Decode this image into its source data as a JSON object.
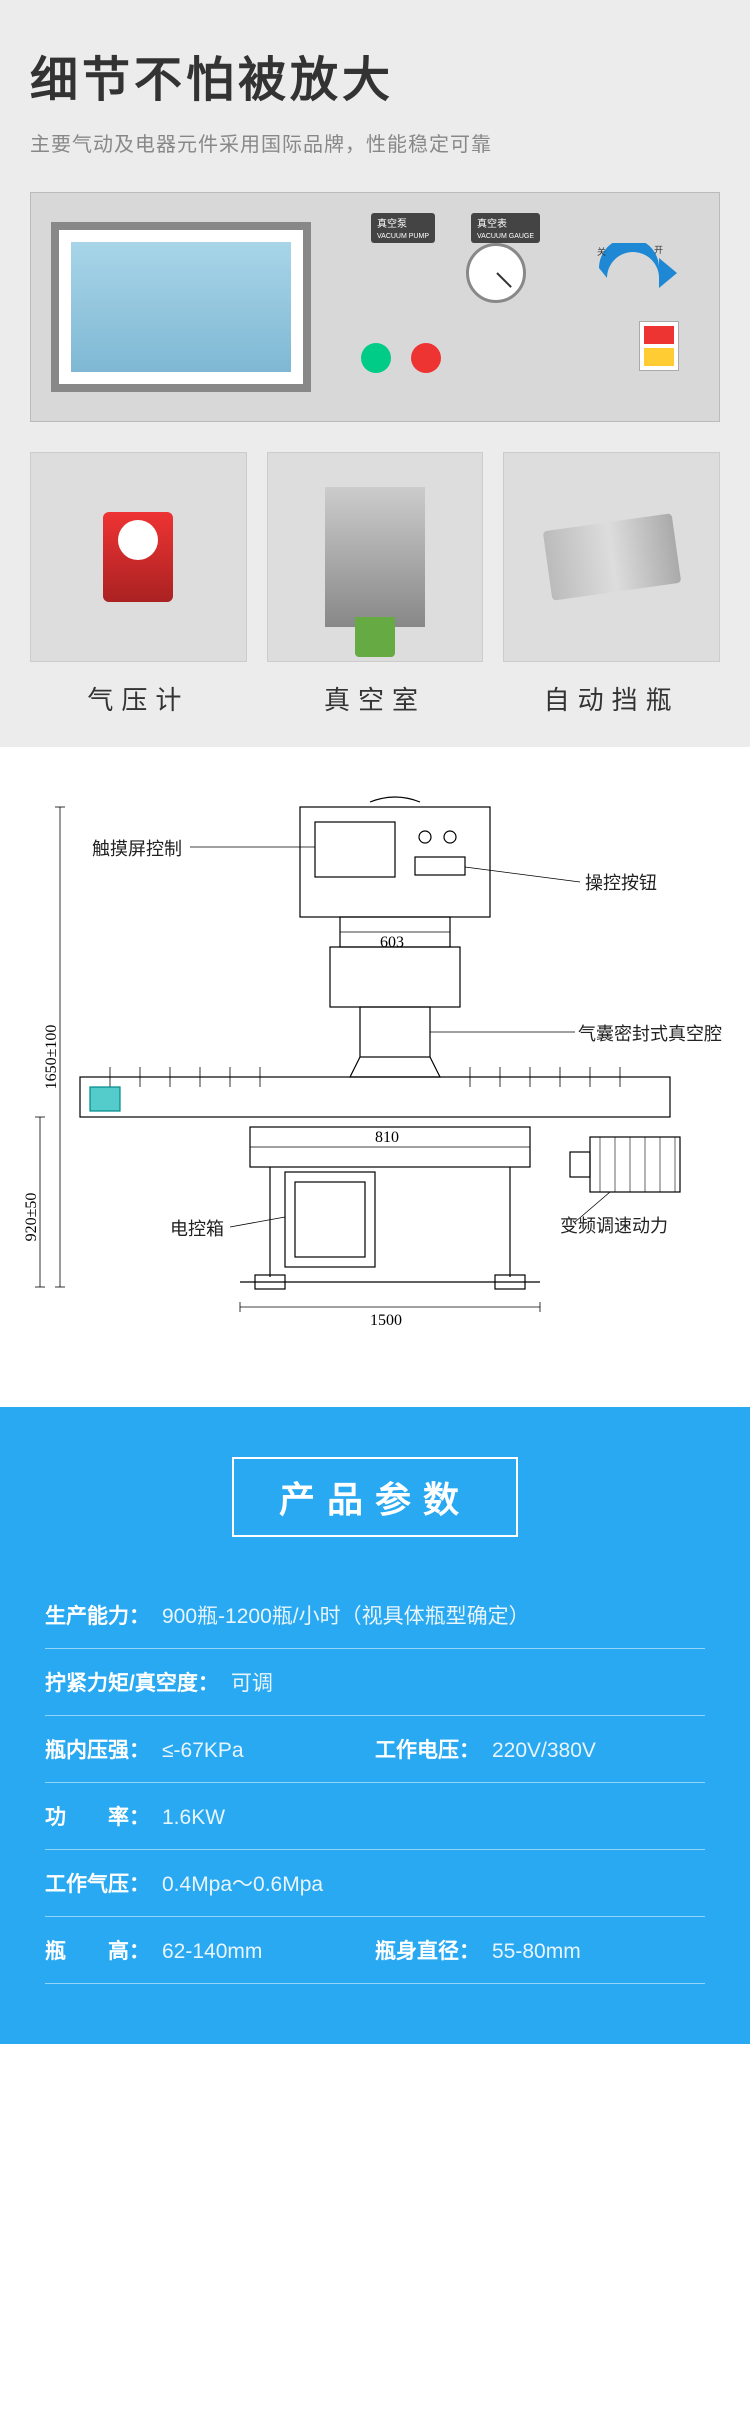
{
  "hero": {
    "title": "细节不怕被放大",
    "subtitle": "主要气动及电器元件采用国际品牌，性能稳定可靠"
  },
  "panel": {
    "label_vacuum_pump": "真空泵",
    "label_vacuum_pump_en": "VACUUM PUMP",
    "label_vacuum_gauge": "真空表",
    "label_vacuum_gauge_en": "VACUUM GAUGE",
    "label_on": "开 ON",
    "label_off": "关 OFF"
  },
  "details": [
    {
      "caption": "气压计"
    },
    {
      "caption": "真空室"
    },
    {
      "caption": "自动挡瓶"
    }
  ],
  "diagram": {
    "labels": {
      "touchscreen": "触摸屏控制",
      "control_button": "操控按钮",
      "vacuum_chamber": "气囊密封式真空腔",
      "control_box": "电控箱",
      "motor": "变频调速动力"
    },
    "dims": {
      "height_total": "1650±100",
      "height_lower": "920±50",
      "width_top": "603",
      "width_mid": "810",
      "width_base": "1500"
    }
  },
  "spec": {
    "title": "产品参数",
    "rows": [
      {
        "type": "single",
        "label": "生产能力：",
        "value": "900瓶-1200瓶/小时（视具体瓶型确定）"
      },
      {
        "type": "single",
        "label": "拧紧力矩/真空度：",
        "value": "可调"
      },
      {
        "type": "double",
        "label1": "瓶内压强：",
        "value1": "≤-67KPa",
        "label2": "工作电压：",
        "value2": "220V/380V"
      },
      {
        "type": "single",
        "label": "功　　率：",
        "value": "1.6KW"
      },
      {
        "type": "single",
        "label": "工作气压：",
        "value": "0.4Mpa～0.6Mpa"
      },
      {
        "type": "double",
        "label1": "瓶　　高：",
        "value1": "62-140mm",
        "label2": "瓶身直径：",
        "value2": "55-80mm"
      }
    ]
  },
  "colors": {
    "hero_bg": "#ececec",
    "spec_bg": "#29a9f2",
    "arrow": "#1e88d4"
  }
}
